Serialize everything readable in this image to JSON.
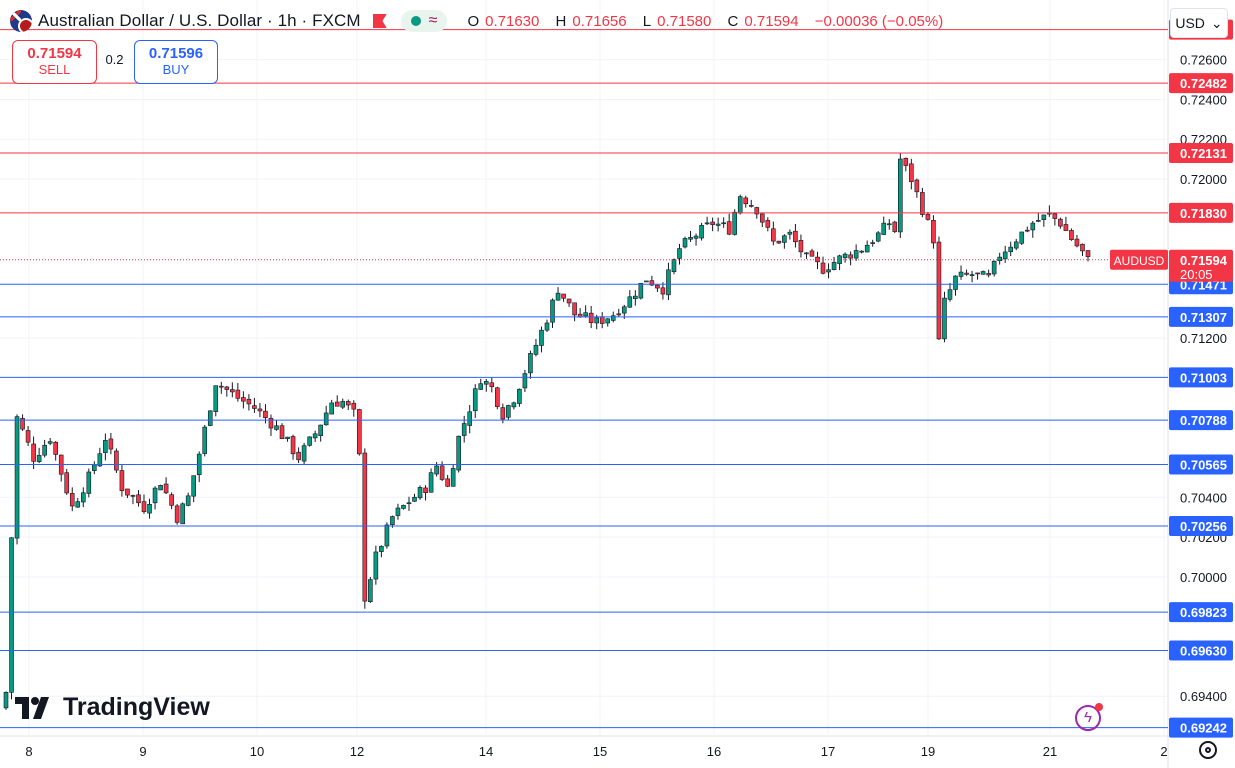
{
  "header": {
    "title": "Australian Dollar / U.S. Dollar · 1h · FXCM",
    "ohlc": [
      {
        "k": "O",
        "v": "0.71630"
      },
      {
        "k": "H",
        "v": "0.71656"
      },
      {
        "k": "L",
        "v": "0.71580"
      },
      {
        "k": "C",
        "v": "0.71594"
      }
    ],
    "change": "−0.00036 (−0.05%)"
  },
  "trade": {
    "sell_price": "0.71594",
    "sell_label": "SELL",
    "spread": "0.2",
    "buy_price": "0.71596",
    "buy_label": "BUY"
  },
  "currency_select": "USD",
  "logo_text": "TradingView",
  "colors": {
    "up": "#089981",
    "down": "#f23645",
    "resistance": "#f23645",
    "support": "#2962ff",
    "grid": "#f0f3fa",
    "price_label": "#f23645"
  },
  "chart_data": {
    "type": "candlestick",
    "symbol": "AUDUSD",
    "interval": "1h",
    "current_price": 0.71594,
    "current_label": "AUDUSD",
    "current_price_text": "0.71594",
    "countdown": "20:05",
    "ylim": [
      0.692,
      0.729
    ],
    "y_ticks": [
      "0.72600",
      "0.72400",
      "0.72200",
      "0.72000",
      "0.71200",
      "0.70400",
      "0.70200",
      "0.70000",
      "0.69400"
    ],
    "x_ticks": [
      "8",
      "9",
      "10",
      "12",
      "14",
      "15",
      "16",
      "17",
      "19",
      "21",
      "2"
    ],
    "resistance_levels": [
      "0.72751",
      "0.72482",
      "0.72131",
      "0.71830"
    ],
    "support_levels": [
      "0.71471",
      "0.71307",
      "0.71003",
      "0.70788",
      "0.70565",
      "0.70256",
      "0.69823",
      "0.69630",
      "0.69242"
    ],
    "path": [
      [
        0,
        0.6942
      ],
      [
        0.5,
        0.699
      ],
      [
        2,
        0.708
      ],
      [
        5,
        0.706
      ],
      [
        8,
        0.707
      ],
      [
        12,
        0.7035
      ],
      [
        15,
        0.705
      ],
      [
        18,
        0.707
      ],
      [
        21,
        0.7045
      ],
      [
        25,
        0.7035
      ],
      [
        28,
        0.7048
      ],
      [
        31,
        0.703
      ],
      [
        33,
        0.704
      ],
      [
        35,
        0.7062
      ],
      [
        38,
        0.7098
      ],
      [
        42,
        0.709
      ],
      [
        45,
        0.7085
      ],
      [
        49,
        0.7075
      ],
      [
        53,
        0.706
      ],
      [
        56,
        0.7072
      ],
      [
        59,
        0.7088
      ],
      [
        61,
        0.7088
      ],
      [
        63,
        0.7082
      ],
      [
        64,
        0.706
      ],
      [
        65,
        0.699
      ],
      [
        67,
        0.701
      ],
      [
        70,
        0.703
      ],
      [
        73,
        0.7038
      ],
      [
        76,
        0.7045
      ],
      [
        78,
        0.7056
      ],
      [
        80,
        0.7045
      ],
      [
        82,
        0.707
      ],
      [
        84,
        0.7085
      ],
      [
        86,
        0.71
      ],
      [
        88,
        0.7095
      ],
      [
        90,
        0.7082
      ],
      [
        92,
        0.709
      ],
      [
        95,
        0.711
      ],
      [
        98,
        0.713
      ],
      [
        100,
        0.7145
      ],
      [
        103,
        0.7132
      ],
      [
        107,
        0.7128
      ],
      [
        110,
        0.7132
      ],
      [
        113,
        0.714
      ],
      [
        116,
        0.715
      ],
      [
        119,
        0.7145
      ],
      [
        122,
        0.7165
      ],
      [
        125,
        0.7172
      ],
      [
        128,
        0.7178
      ],
      [
        131,
        0.7175
      ],
      [
        133,
        0.7192
      ],
      [
        136,
        0.7185
      ],
      [
        139,
        0.7168
      ],
      [
        142,
        0.7172
      ],
      [
        145,
        0.716
      ],
      [
        148,
        0.7155
      ],
      [
        151,
        0.716
      ],
      [
        155,
        0.7165
      ],
      [
        158,
        0.7172
      ],
      [
        160,
        0.7178
      ],
      [
        161,
        0.7174
      ],
      [
        162,
        0.721
      ],
      [
        164,
        0.72
      ],
      [
        166,
        0.7185
      ],
      [
        168,
        0.717
      ],
      [
        169,
        0.7118
      ],
      [
        170,
        0.7138
      ],
      [
        172,
        0.715
      ],
      [
        175,
        0.7152
      ],
      [
        178,
        0.715
      ],
      [
        180,
        0.7162
      ],
      [
        183,
        0.717
      ],
      [
        186,
        0.7178
      ],
      [
        189,
        0.7182
      ],
      [
        191,
        0.7178
      ],
      [
        193,
        0.717
      ],
      [
        195,
        0.7163
      ],
      [
        196,
        0.7159
      ]
    ]
  }
}
